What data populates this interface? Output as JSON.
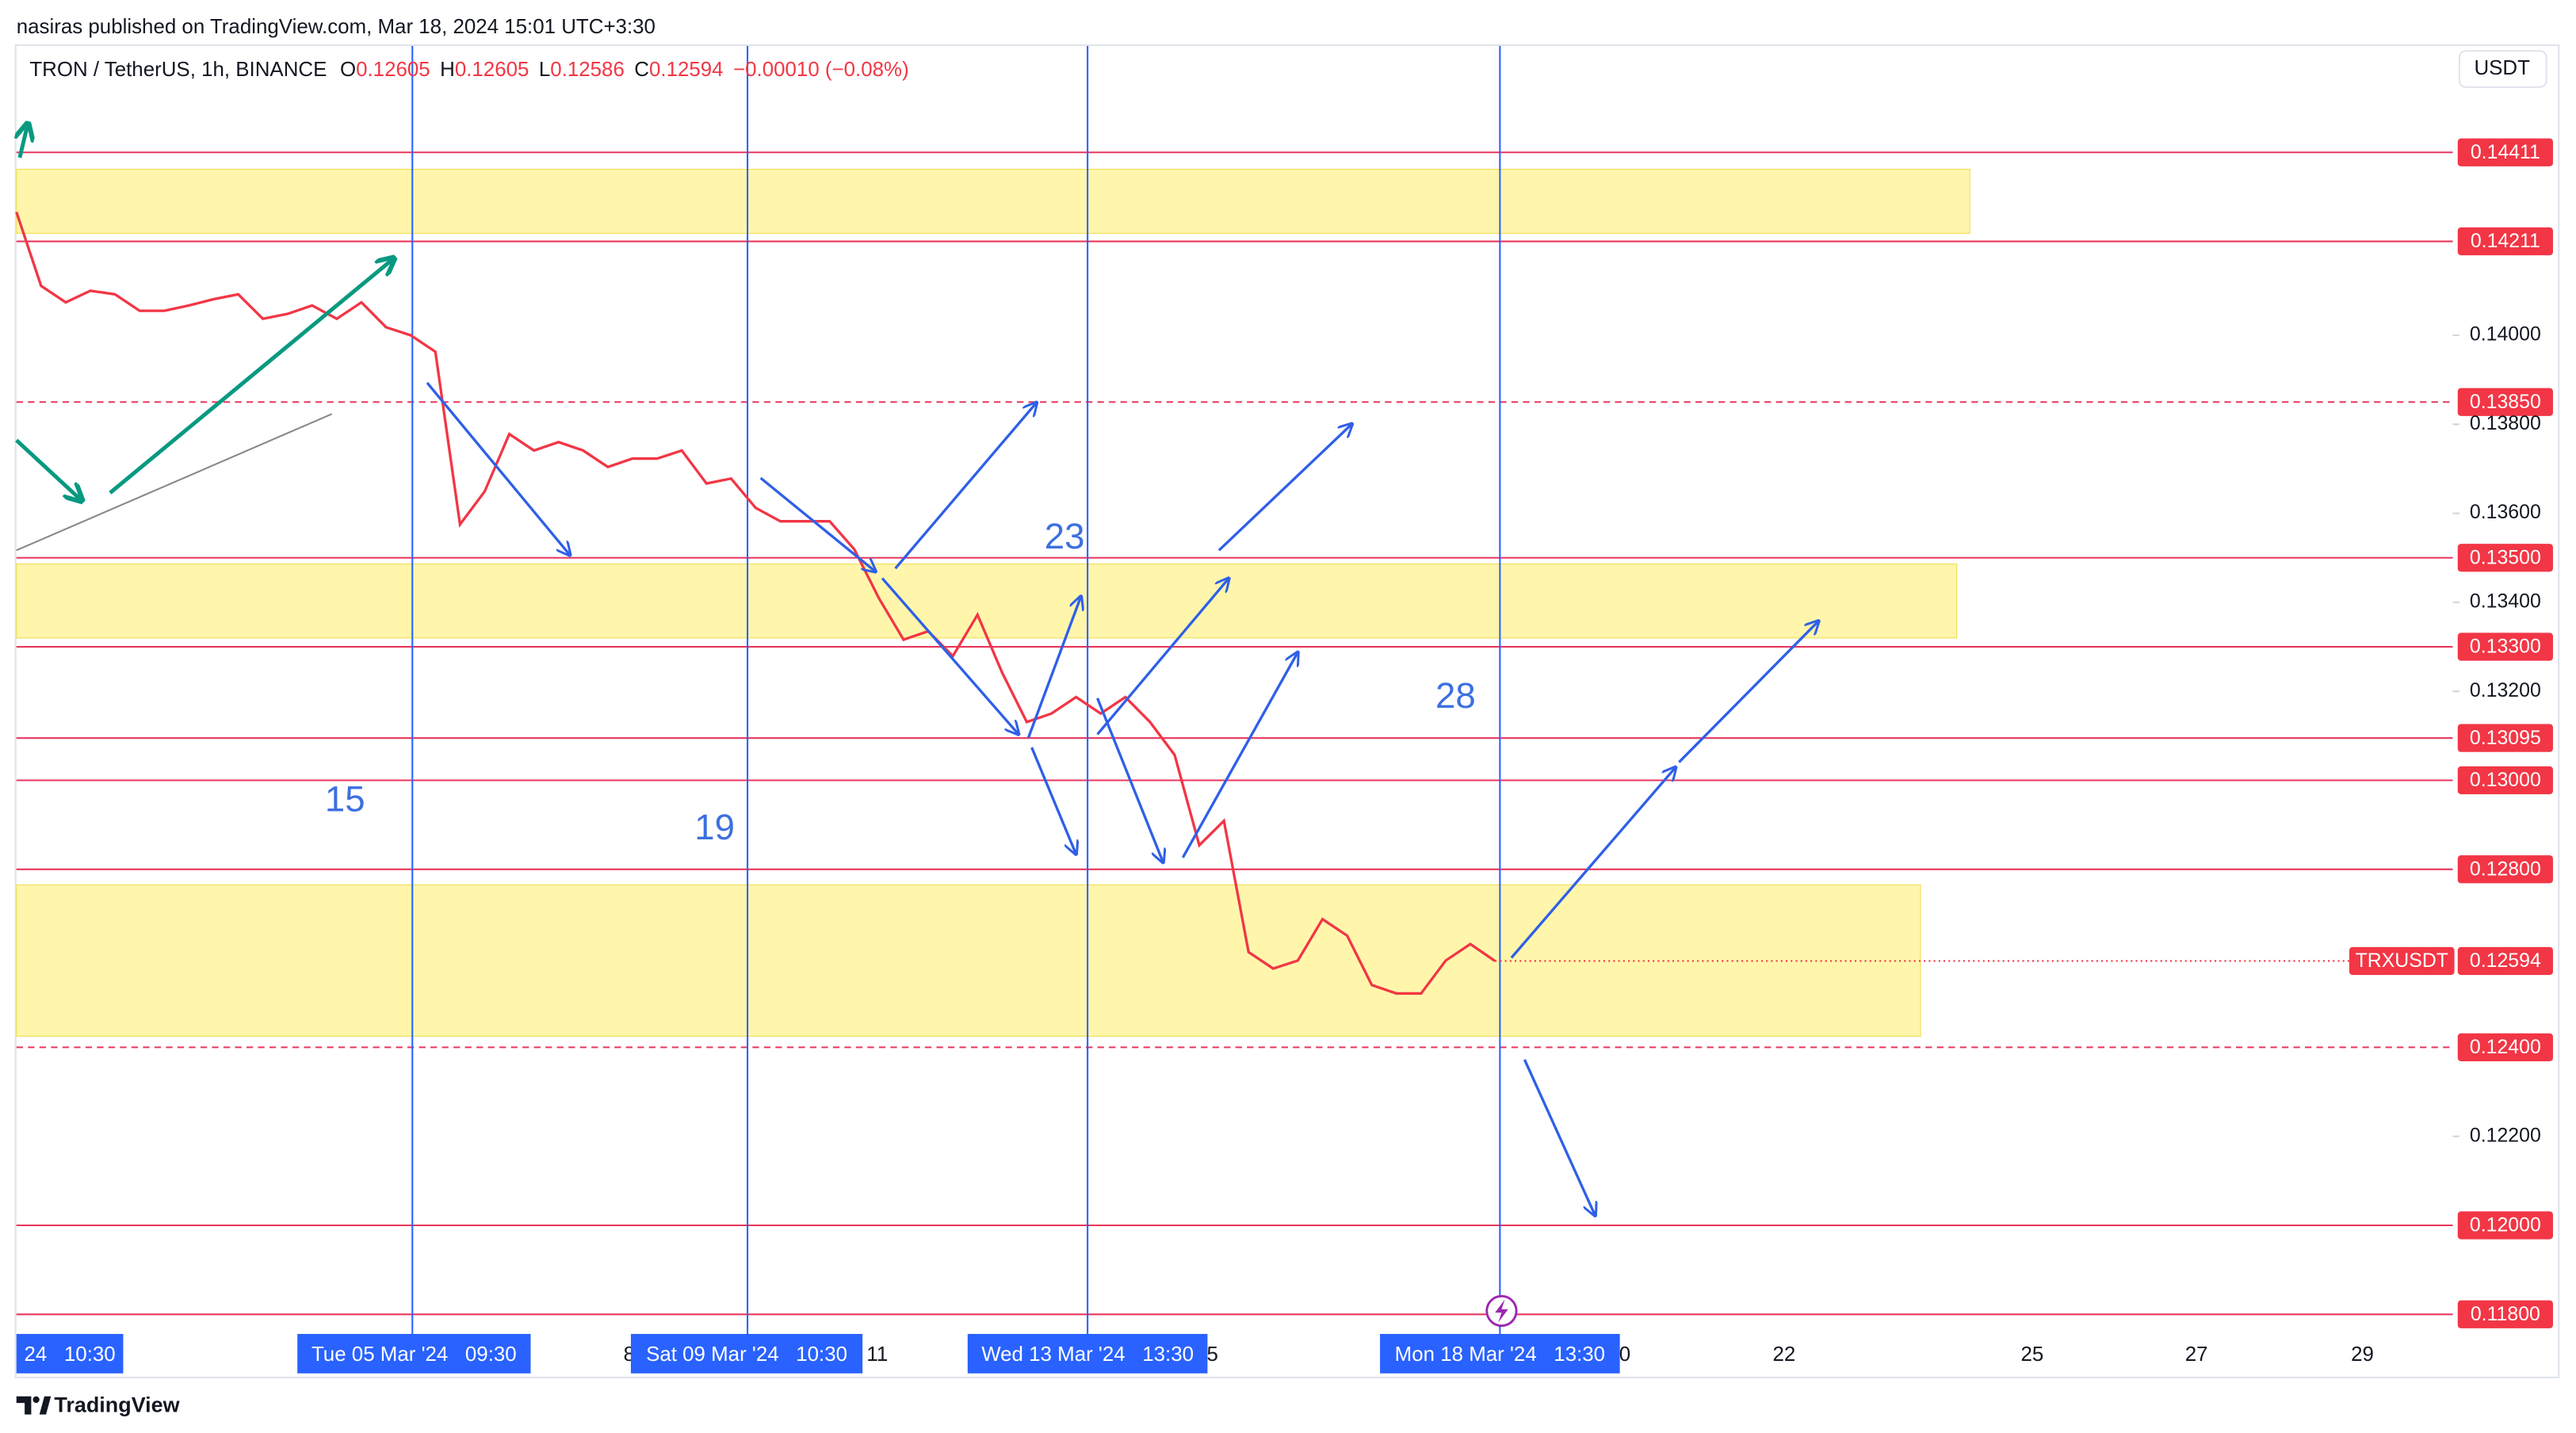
{
  "header": {
    "publisher": "nasiras published on TradingView.com, Mar 18, 2024 15:01 UTC+3:30"
  },
  "legend": {
    "symbol": "TRON / TetherUS, 1h, BINANCE",
    "open_label": "O",
    "open": 0.12605,
    "high_label": "H",
    "high": 0.12605,
    "low_label": "L",
    "low": 0.12586,
    "close_label": "C",
    "close": 0.12594,
    "change": "−0.00010 (−0.08%)"
  },
  "currency": "USDT",
  "chart_data": {
    "type": "line",
    "series": [
      {
        "name": "TRXUSDT",
        "color": "#f23645",
        "values": [
          0.14277,
          0.14111,
          0.14074,
          0.141,
          0.14092,
          0.14055,
          0.14055,
          0.14067,
          0.14081,
          0.14092,
          0.14037,
          0.14048,
          0.14067,
          0.14037,
          0.14074,
          0.14018,
          0.14,
          0.13963,
          0.13575,
          0.13649,
          0.13778,
          0.13741,
          0.1376,
          0.13741,
          0.13704,
          0.13723,
          0.13723,
          0.13741,
          0.13667,
          0.13678,
          0.13612,
          0.13582,
          0.13582,
          0.13582,
          0.13519,
          0.13409,
          0.13316,
          0.13335,
          0.13279,
          0.13372,
          0.13242,
          0.13131,
          0.1315,
          0.13187,
          0.1315,
          0.13187,
          0.13131,
          0.13057,
          0.12854,
          0.12909,
          0.12614,
          0.12577,
          0.12595,
          0.12688,
          0.12651,
          0.1254,
          0.12521,
          0.12521,
          0.12595,
          0.12632,
          0.12594
        ]
      }
    ],
    "ylim": [
      0.1166,
      0.1465
    ],
    "yticks": [
      {
        "value": 0.122,
        "label": "0.12200"
      },
      {
        "value": 0.132,
        "label": "0.13200"
      },
      {
        "value": 0.134,
        "label": "0.13400"
      },
      {
        "value": 0.136,
        "label": "0.13600"
      },
      {
        "value": 0.138,
        "label": "0.13800"
      },
      {
        "value": 0.14,
        "label": "0.14000"
      }
    ],
    "grid": false,
    "level_color": "#e8365d",
    "levels": [
      {
        "value": 0.14411,
        "label": "0.14411",
        "dashed": false
      },
      {
        "value": 0.14211,
        "label": "0.14211",
        "dashed": false
      },
      {
        "value": 0.1385,
        "label": "0.13850",
        "dashed": true
      },
      {
        "value": 0.135,
        "label": "0.13500",
        "dashed": false
      },
      {
        "value": 0.133,
        "label": "0.13300",
        "dashed": false
      },
      {
        "value": 0.13095,
        "label": "0.13095",
        "dashed": false
      },
      {
        "value": 0.13,
        "label": "0.13000",
        "dashed": false
      },
      {
        "value": 0.128,
        "label": "0.12800",
        "dashed": false
      },
      {
        "value": 0.124,
        "label": "0.12400",
        "dashed": true
      },
      {
        "value": 0.12,
        "label": "0.12000",
        "dashed": false
      },
      {
        "value": 0.118,
        "label": "0.11800",
        "dashed": false
      }
    ],
    "zone_color": "#fff59d",
    "zones": [
      {
        "high": 0.14373,
        "low": 0.14229
      },
      {
        "high": 0.13486,
        "low": 0.1332
      },
      {
        "high": 0.12765,
        "low": 0.12425
      }
    ],
    "annotations": [
      "15",
      "19",
      "23",
      "28"
    ],
    "x_labels": [
      "8",
      "11",
      "5",
      "0",
      "22",
      "25",
      "27",
      "29"
    ],
    "x_highlight_labels": [
      "24   10:30",
      "Tue 05 Mar '24   09:30",
      "Sat 09 Mar '24   10:30",
      "Wed 13 Mar '24   13:30",
      "Mon 18 Mar '24   13:30"
    ]
  },
  "footer": {
    "brand": "TradingView"
  }
}
